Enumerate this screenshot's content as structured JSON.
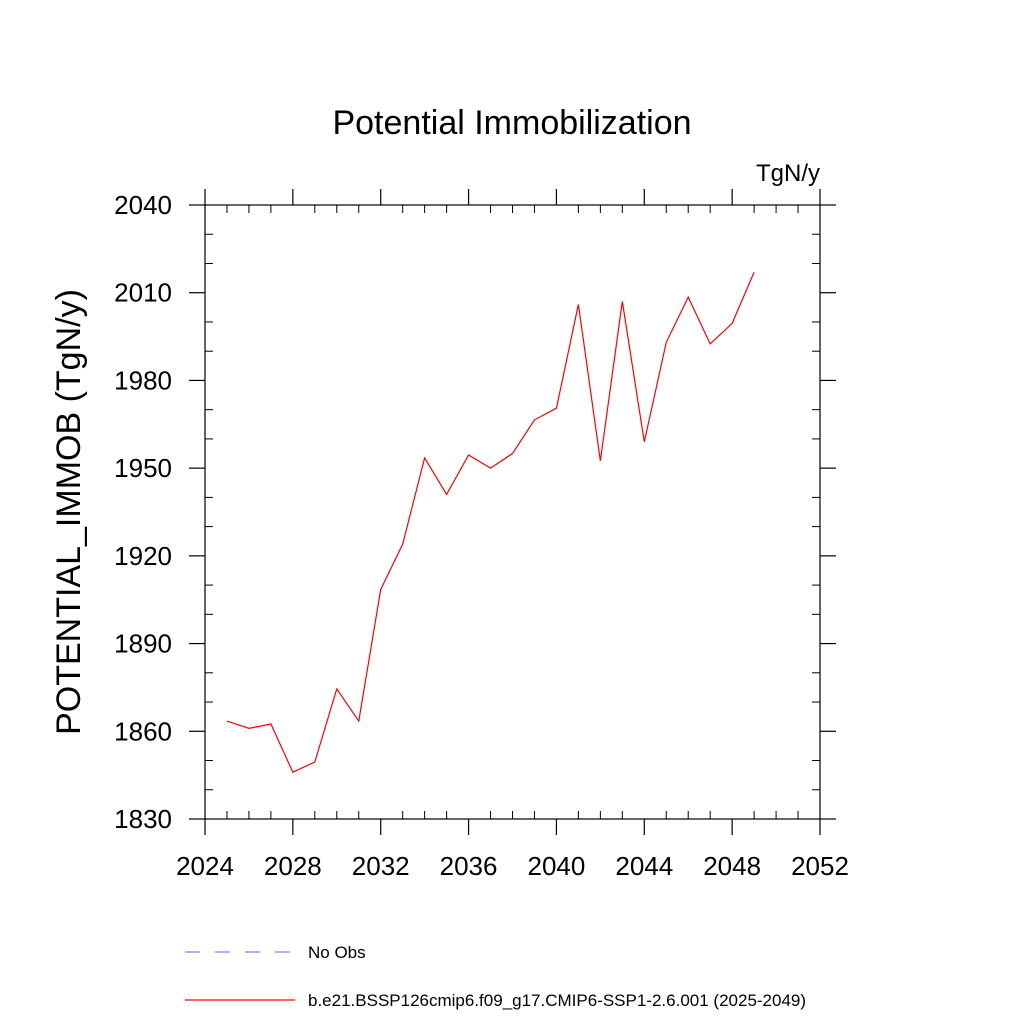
{
  "chart_data": {
    "type": "line",
    "title": "Potential Immobilization",
    "units_label": "TgN/y",
    "ylabel": "POTENTIAL_IMMOB  (TgN/y)",
    "xlabel": "",
    "xlim": [
      2024,
      2052
    ],
    "ylim": [
      1830,
      2040
    ],
    "x_ticks": [
      2024,
      2028,
      2032,
      2036,
      2040,
      2044,
      2048,
      2052
    ],
    "y_ticks": [
      1830,
      1860,
      1890,
      1920,
      1950,
      1980,
      2010,
      2040
    ],
    "x_minor_step": 1,
    "y_minor_step": 10,
    "grid": false,
    "legend_position": "bottom",
    "series": [
      {
        "name": "b.e21.BSSP126cmip6.f09_g17.CMIP6-SSP1-2.6.001 (2025-2049)",
        "color": "#ff0000",
        "style": "solid",
        "x": [
          2025,
          2026,
          2027,
          2028,
          2029,
          2030,
          2031,
          2032,
          2033,
          2034,
          2035,
          2036,
          2037,
          2038,
          2039,
          2040,
          2041,
          2042,
          2043,
          2044,
          2045,
          2046,
          2047,
          2048,
          2049
        ],
        "y": [
          1863.5,
          1861.0,
          1862.5,
          1846.0,
          1849.5,
          1874.5,
          1863.5,
          1908.5,
          1924.0,
          1953.5,
          1941.0,
          1954.5,
          1950.0,
          1955.0,
          1966.5,
          1970.5,
          2006.0,
          1952.5,
          2007.0,
          1959.0,
          1993.0,
          2008.5,
          1992.5,
          1999.5,
          2017.0
        ]
      }
    ],
    "legend": [
      {
        "label": "No Obs",
        "color": "#8080ff",
        "style": "dashed"
      },
      {
        "label": "b.e21.BSSP126cmip6.f09_g17.CMIP6-SSP1-2.6.001 (2025-2049)",
        "color": "#ff0000",
        "style": "solid"
      }
    ]
  }
}
